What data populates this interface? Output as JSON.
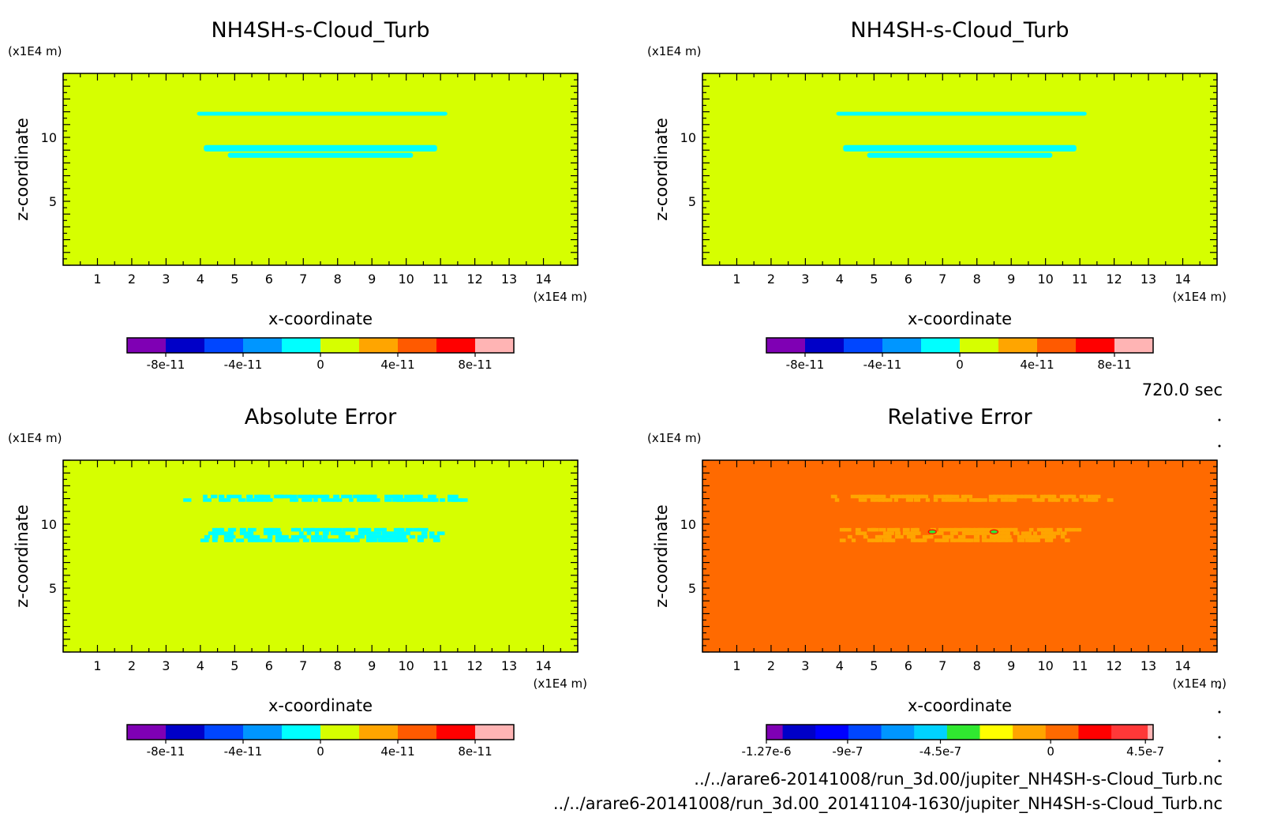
{
  "time_label": "720.0 sec",
  "files": [
    "../../arare6-20141008/run_3d.00/jupiter_NH4SH-s-Cloud_Turb.nc",
    "../../arare6-20141008/run_3d.00_20141104-1630/jupiter_NH4SH-s-Cloud_Turb.nc"
  ],
  "colors": {
    "background_lime": "#d6ff00",
    "cyan": "#00ffff",
    "orange_bg": "#ff6a00",
    "light_orange": "#ffa500"
  },
  "panels_text": [
    {
      "title": "NH4SH-s-Cloud_Turb",
      "xunit": "(x1E4 m)",
      "yunit": "(x1E4 m)",
      "xlabel": "x-coordinate",
      "ylabel": "z-coordinate"
    },
    {
      "title": "NH4SH-s-Cloud_Turb",
      "xunit": "(x1E4 m)",
      "yunit": "(x1E4 m)",
      "xlabel": "x-coordinate",
      "ylabel": "z-coordinate"
    },
    {
      "title": "Absolute Error",
      "xunit": "(x1E4 m)",
      "yunit": "(x1E4 m)",
      "xlabel": "x-coordinate",
      "ylabel": "z-coordinate"
    },
    {
      "title": "Relative Error",
      "xunit": "(x1E4 m)",
      "yunit": "(x1E4 m)",
      "xlabel": "x-coordinate",
      "ylabel": "z-coordinate"
    }
  ],
  "chart_data": [
    {
      "type": "heatmap",
      "title": "NH4SH-s-Cloud_Turb",
      "xlabel": "x-coordinate",
      "ylabel": "z-coordinate",
      "xunit": "(x1E4 m)",
      "yunit": "(x1E4 m)",
      "xlim": [
        0,
        15
      ],
      "ylim": [
        0,
        15
      ],
      "xticks": [
        1,
        2,
        3,
        4,
        5,
        6,
        7,
        8,
        9,
        10,
        11,
        12,
        13,
        14
      ],
      "yticks": [
        5,
        10
      ],
      "background_color": "#d6ff00",
      "features": [
        {
          "color": "#00ffff",
          "x": [
            3.9,
            11.2
          ],
          "z": [
            11.7,
            12.0
          ]
        },
        {
          "color": "#00ffff",
          "x": [
            4.1,
            10.9
          ],
          "z": [
            8.9,
            9.4
          ]
        },
        {
          "color": "#00ffff",
          "x": [
            4.8,
            10.2
          ],
          "z": [
            8.4,
            8.8
          ]
        }
      ],
      "colorbar": {
        "colors": [
          "#7f00b4",
          "#0000c8",
          "#0046ff",
          "#0096ff",
          "#00ffff",
          "#d6ff00",
          "#ffa500",
          "#ff5a00",
          "#ff0000",
          "#ffb4b4"
        ],
        "ticks": [
          {
            "label": "-8e-11",
            "pos": 1
          },
          {
            "label": "-4e-11",
            "pos": 3
          },
          {
            "label": "0",
            "pos": 5
          },
          {
            "label": "4e-11",
            "pos": 7
          },
          {
            "label": "8e-11",
            "pos": 9
          }
        ]
      }
    },
    {
      "type": "heatmap",
      "title": "NH4SH-s-Cloud_Turb",
      "xlabel": "x-coordinate",
      "ylabel": "z-coordinate",
      "xunit": "(x1E4 m)",
      "yunit": "(x1E4 m)",
      "xlim": [
        0,
        15
      ],
      "ylim": [
        0,
        15
      ],
      "xticks": [
        1,
        2,
        3,
        4,
        5,
        6,
        7,
        8,
        9,
        10,
        11,
        12,
        13,
        14
      ],
      "yticks": [
        5,
        10
      ],
      "background_color": "#d6ff00",
      "features": [
        {
          "color": "#00ffff",
          "x": [
            3.9,
            11.2
          ],
          "z": [
            11.7,
            12.0
          ]
        },
        {
          "color": "#00ffff",
          "x": [
            4.1,
            10.9
          ],
          "z": [
            8.9,
            9.4
          ]
        },
        {
          "color": "#00ffff",
          "x": [
            4.8,
            10.2
          ],
          "z": [
            8.4,
            8.8
          ]
        }
      ],
      "colorbar": {
        "colors": [
          "#7f00b4",
          "#0000c8",
          "#0046ff",
          "#0096ff",
          "#00ffff",
          "#d6ff00",
          "#ffa500",
          "#ff5a00",
          "#ff0000",
          "#ffb4b4"
        ],
        "ticks": [
          {
            "label": "-8e-11",
            "pos": 1
          },
          {
            "label": "-4e-11",
            "pos": 3
          },
          {
            "label": "0",
            "pos": 5
          },
          {
            "label": "4e-11",
            "pos": 7
          },
          {
            "label": "8e-11",
            "pos": 9
          }
        ]
      }
    },
    {
      "type": "heatmap",
      "title": "Absolute Error",
      "xlabel": "x-coordinate",
      "ylabel": "z-coordinate",
      "xunit": "(x1E4 m)",
      "yunit": "(x1E4 m)",
      "xlim": [
        0,
        15
      ],
      "ylim": [
        0,
        15
      ],
      "xticks": [
        1,
        2,
        3,
        4,
        5,
        6,
        7,
        8,
        9,
        10,
        11,
        12,
        13,
        14
      ],
      "yticks": [
        5,
        10
      ],
      "background_color": "#d6ff00",
      "features": [
        {
          "color": "#00ffff",
          "x": [
            3.5,
            11.8
          ],
          "z": [
            11.8,
            12.3
          ],
          "pattern": "scattered"
        },
        {
          "color": "#00ffff",
          "x": [
            4.0,
            11.0
          ],
          "z": [
            8.7,
            9.7
          ],
          "pattern": "scattered"
        }
      ],
      "colorbar": {
        "colors": [
          "#7f00b4",
          "#0000c8",
          "#0046ff",
          "#0096ff",
          "#00ffff",
          "#d6ff00",
          "#ffa500",
          "#ff5a00",
          "#ff0000",
          "#ffb4b4"
        ],
        "ticks": [
          {
            "label": "-8e-11",
            "pos": 1
          },
          {
            "label": "-4e-11",
            "pos": 3
          },
          {
            "label": "0",
            "pos": 5
          },
          {
            "label": "4e-11",
            "pos": 7
          },
          {
            "label": "8e-11",
            "pos": 9
          }
        ]
      }
    },
    {
      "type": "heatmap",
      "title": "Relative Error",
      "xlabel": "x-coordinate",
      "ylabel": "z-coordinate",
      "xunit": "(x1E4 m)",
      "yunit": "(x1E4 m)",
      "xlim": [
        0,
        15
      ],
      "ylim": [
        0,
        15
      ],
      "xticks": [
        1,
        2,
        3,
        4,
        5,
        6,
        7,
        8,
        9,
        10,
        11,
        12,
        13,
        14
      ],
      "yticks": [
        5,
        10
      ],
      "background_color": "#ff6a00",
      "features": [
        {
          "color": "#ffa500",
          "x": [
            3.4,
            11.8
          ],
          "z": [
            11.8,
            12.3
          ],
          "pattern": "scattered"
        },
        {
          "color": "#ffa500",
          "x": [
            4.0,
            11.0
          ],
          "z": [
            8.7,
            9.7
          ],
          "pattern": "scattered"
        }
      ],
      "colorbar": {
        "colors": [
          "#7f00b4",
          "#0000c8",
          "#0000ff",
          "#0046ff",
          "#0096ff",
          "#00d2ff",
          "#30e830",
          "#ffff00",
          "#ffa500",
          "#ff6a00",
          "#ff0000",
          "#ff3838",
          "#ffb4b4"
        ],
        "stops": [
          0,
          0.042,
          0.127,
          0.212,
          0.297,
          0.382,
          0.467,
          0.552,
          0.637,
          0.722,
          0.807,
          0.892,
          0.986,
          1
        ],
        "ticks": [
          {
            "label": "-1.27e-6",
            "frac": 0.0
          },
          {
            "label": "-9e-7",
            "frac": 0.21
          },
          {
            "label": "-4.5e-7",
            "frac": 0.45
          },
          {
            "label": "0",
            "frac": 0.735
          },
          {
            "label": "4.5e-7",
            "frac": 0.98
          }
        ]
      }
    }
  ]
}
